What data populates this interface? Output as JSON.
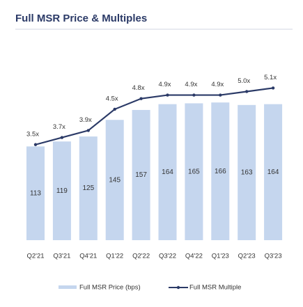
{
  "chart_data": {
    "type": "bar-line",
    "title": "Full MSR Price & Multiples",
    "categories": [
      "Q2'21",
      "Q3'21",
      "Q4'21",
      "Q1'22",
      "Q2'22",
      "Q3'22",
      "Q4'22",
      "Q1'23",
      "Q2'23",
      "Q3'23"
    ],
    "series": [
      {
        "name": "Full MSR Price (bps)",
        "color": "#c5d6ee",
        "values": [
          113,
          119,
          125,
          145,
          157,
          164,
          165,
          166,
          163,
          164
        ]
      },
      {
        "name": "Full MSR Multiple",
        "color": "#2b3a67",
        "axis": "y2",
        "values": [
          3.5,
          3.7,
          3.9,
          4.5,
          4.8,
          4.9,
          4.9,
          4.9,
          5.0,
          5.1
        ],
        "value_labels": [
          "3.5x",
          "3.7x",
          "3.9x",
          "4.5x",
          "4.8x",
          "4.9x",
          "4.9x",
          "4.9x",
          "5.0x",
          "5.1x"
        ]
      }
    ],
    "ylim": [
      0,
      256
    ],
    "y2lim": [
      0.8,
      6.8
    ]
  }
}
